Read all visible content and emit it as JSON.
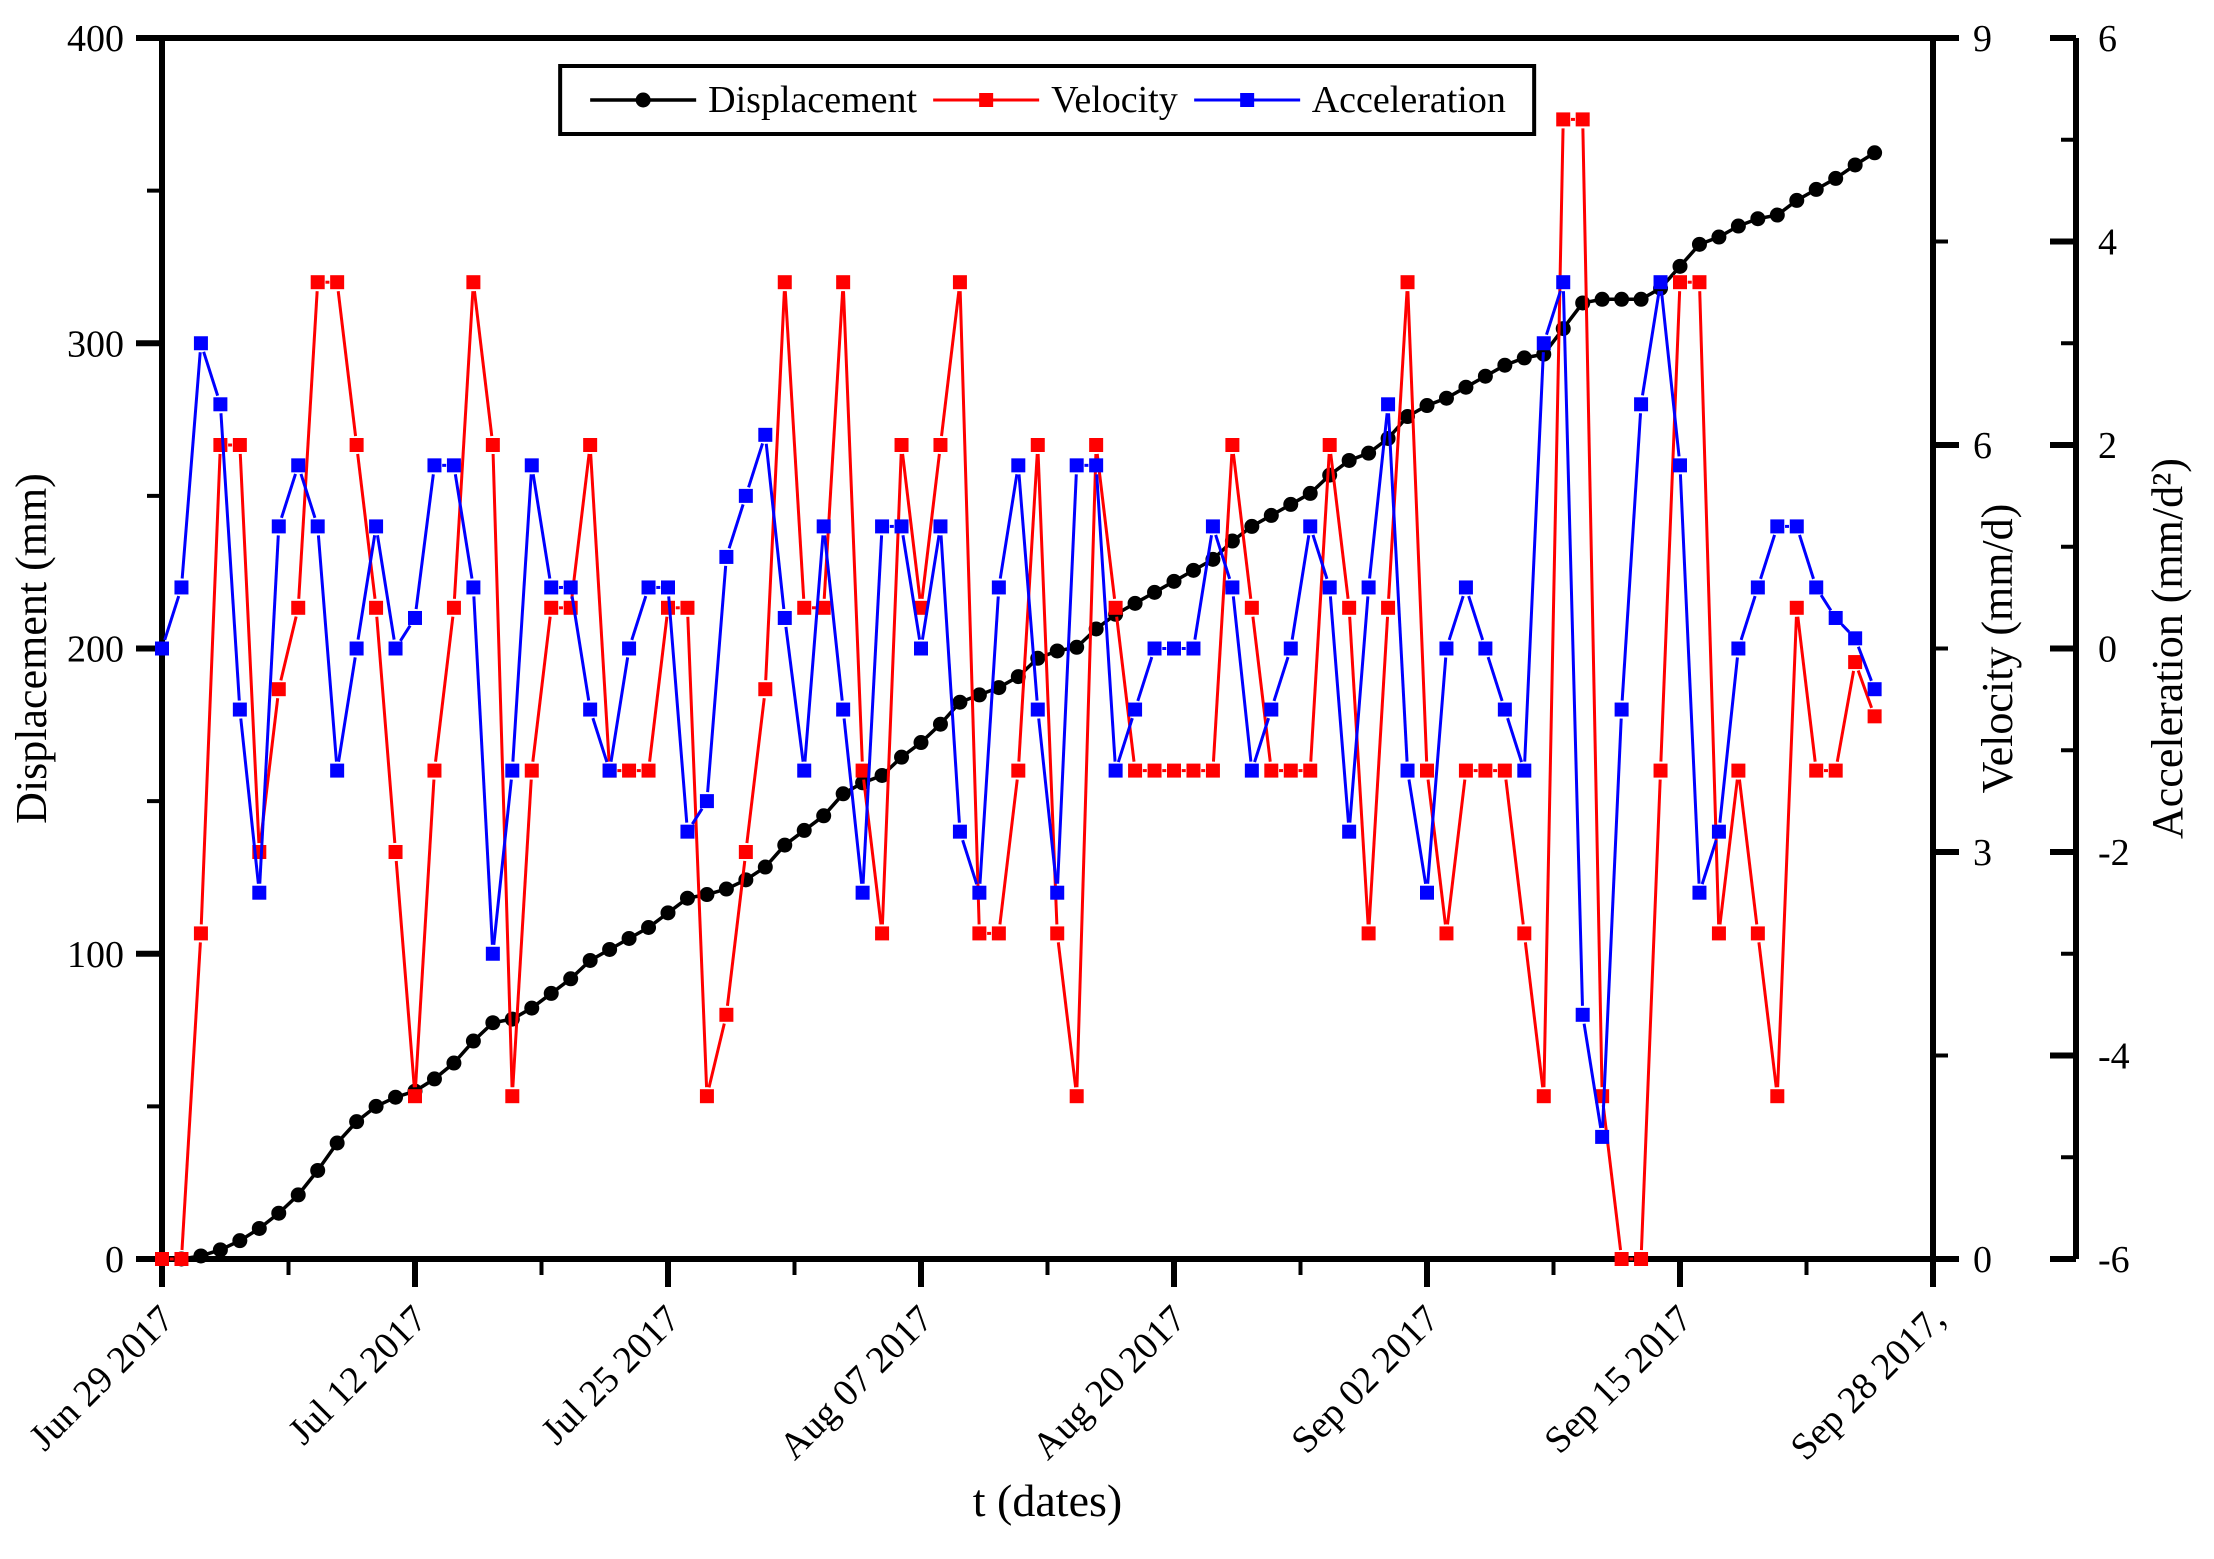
{
  "figure": {
    "background": "#ffffff",
    "x_axis_title": "t (dates)",
    "left_axis_title": "Displacement (mm)",
    "right_axis_title": "Velocity (mm/d)",
    "far_right_axis_title": "Acceleration (mm/d²)"
  },
  "legend": {
    "items": [
      {
        "label": "Displacement",
        "color": "#000000",
        "marker": "circle"
      },
      {
        "label": "Velocity",
        "color": "#ff0000",
        "marker": "square"
      },
      {
        "label": "Acceleration",
        "color": "#0000ff",
        "marker": "square"
      }
    ]
  },
  "chart_data": {
    "type": "line",
    "title": "",
    "xlabel": "t (dates)",
    "x_unit": "days since Jun 29 2017 (daily points)",
    "x_range_days": [
      0,
      91
    ],
    "x_major_tick_days": [
      0,
      13,
      26,
      39,
      52,
      65,
      78,
      91
    ],
    "x_minor_tick_days": [
      6.5,
      19.5,
      32.5,
      45.5,
      58.5,
      71.5,
      84.5
    ],
    "x_tick_labels": [
      "Jun 29 2017",
      "Jul 12 2017",
      "Jul 25 2017",
      "Aug 07 2017",
      "Aug 20 2017",
      "Sep 02 2017",
      "Sep 15 2017",
      "Sep 28 2017,"
    ],
    "grid": false,
    "legend_position": "top-center",
    "axes": {
      "displacement": {
        "title": "Displacement (mm)",
        "range": [
          0,
          400
        ],
        "major_ticks": [
          0,
          100,
          200,
          300,
          400
        ],
        "minor_ticks": [
          50,
          150,
          250,
          350
        ],
        "side": "left"
      },
      "velocity": {
        "title": "Velocity (mm/d)",
        "range": [
          0,
          9
        ],
        "major_ticks": [
          0,
          3,
          6,
          9
        ],
        "minor_ticks": [
          1.5,
          4.5,
          7.5
        ],
        "side": "right"
      },
      "acceleration": {
        "title": "Acceleration (mm/d²)",
        "range": [
          -6,
          6
        ],
        "major_ticks": [
          -6,
          -4,
          -2,
          0,
          2,
          4,
          6
        ],
        "minor_ticks": [
          -5,
          -3,
          -1,
          1,
          3,
          5
        ],
        "side": "far-right"
      }
    },
    "series": [
      {
        "name": "Displacement",
        "axis": "displacement",
        "color": "#000000",
        "marker": "circle",
        "units": "mm",
        "values": [
          0,
          0,
          1,
          3,
          6,
          10,
          15,
          21,
          29,
          38,
          45,
          50,
          53,
          55,
          59,
          64.2,
          71.4,
          77.4,
          78.6,
          82.2,
          87,
          91.8,
          97.8,
          101.4,
          105,
          108.6,
          113.4,
          118.2,
          119.4,
          121.2,
          124.2,
          128.4,
          135.6,
          140.4,
          145.2,
          152.4,
          156,
          158.4,
          164.4,
          169.2,
          175.2,
          182.4,
          184.8,
          187.2,
          190.8,
          196.8,
          199.2,
          200.4,
          206.4,
          211.2,
          214.8,
          218.4,
          222,
          225.6,
          229.2,
          235.2,
          240,
          243.6,
          247.2,
          250.8,
          256.8,
          261.6,
          264,
          268.8,
          276,
          279.6,
          282,
          285.6,
          289.2,
          292.8,
          295.2,
          296.4,
          304.8,
          313.2,
          314.4,
          314.4,
          314.4,
          318,
          325.2,
          332.4,
          334.8,
          338.4,
          340.8,
          342,
          346.8,
          350.4,
          354,
          358.4,
          362.4
        ]
      },
      {
        "name": "Velocity",
        "axis": "velocity",
        "color": "#ff0000",
        "marker": "square",
        "units": "mm/d",
        "values": [
          0,
          0,
          2.4,
          6,
          6,
          3,
          4.2,
          4.8,
          7.2,
          7.2,
          6,
          4.8,
          3,
          1.2,
          3.6,
          4.8,
          7.2,
          6,
          1.2,
          3.6,
          4.8,
          4.8,
          6,
          3.6,
          3.6,
          3.6,
          4.8,
          4.8,
          1.2,
          1.8,
          3,
          4.2,
          7.2,
          4.8,
          4.8,
          7.2,
          3.6,
          2.4,
          6,
          4.8,
          6,
          7.2,
          2.4,
          2.4,
          3.6,
          6,
          2.4,
          1.2,
          6,
          4.8,
          3.6,
          3.6,
          3.6,
          3.6,
          3.6,
          6,
          4.8,
          3.6,
          3.6,
          3.6,
          6,
          4.8,
          2.4,
          4.8,
          7.2,
          3.6,
          2.4,
          3.6,
          3.6,
          3.6,
          2.4,
          1.2,
          8.4,
          8.4,
          1.2,
          0,
          0,
          3.6,
          7.2,
          7.2,
          2.4,
          3.6,
          2.4,
          1.2,
          4.8,
          3.6,
          3.6,
          4.4,
          4
        ]
      },
      {
        "name": "Acceleration",
        "axis": "acceleration",
        "color": "#0000ff",
        "marker": "square",
        "units": "mm/d2",
        "values": [
          0,
          0.6,
          3,
          2.4,
          -0.6,
          -2.4,
          1.2,
          1.8,
          1.2,
          -1.2,
          0,
          1.2,
          0,
          0.3,
          1.8,
          1.8,
          0.6,
          -3,
          -1.2,
          1.8,
          0.6,
          0.6,
          -0.6,
          -1.2,
          0,
          0.6,
          0.6,
          -1.8,
          -1.5,
          0.9,
          1.5,
          2.1,
          0.3,
          -1.2,
          1.2,
          -0.6,
          -2.4,
          1.2,
          1.2,
          0,
          1.2,
          -1.8,
          -2.4,
          0.6,
          1.8,
          -0.6,
          -2.4,
          1.8,
          1.8,
          -1.2,
          -0.6,
          0,
          0,
          0,
          1.2,
          0.6,
          -1.2,
          -0.6,
          0,
          1.2,
          0.6,
          -1.8,
          0.6,
          2.4,
          -1.2,
          -2.4,
          0,
          0.6,
          0,
          -0.6,
          -1.2,
          3,
          3.6,
          -3.6,
          -4.8,
          -0.6,
          2.4,
          3.6,
          1.8,
          -2.4,
          -1.8,
          0,
          0.6,
          1.2,
          1.2,
          0.6,
          0.3,
          0.1,
          -0.4
        ]
      }
    ]
  }
}
